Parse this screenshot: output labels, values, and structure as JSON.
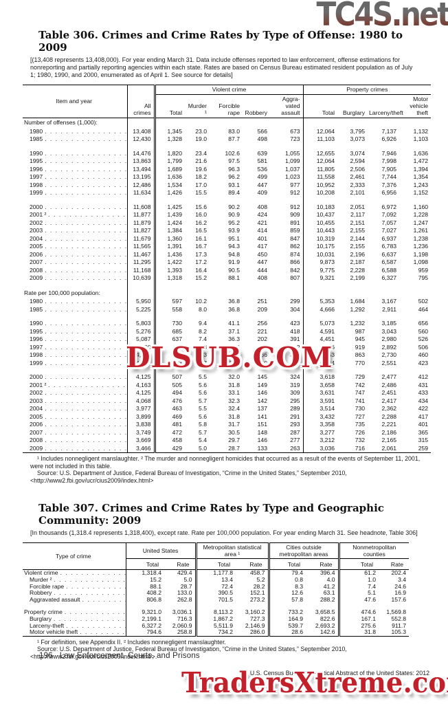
{
  "watermarks": {
    "top": "TC4S.net",
    "middle": "DLSUB.COM",
    "bottom": "TradersXtreme.com",
    "red_color": "#c2202a",
    "gray_color": "#5c5c5c"
  },
  "table306": {
    "title": "Table 306. Crimes and Crime Rates by Type of Offense: 1980 to 2009",
    "headnote": "[(13,408 represents 13,408,000). For year ending March 31. Data include offenses reported to law enforcement, offense estimations for nonreporting and partially reporting agencies within each state. Rates are based on Census Bureau estimated resident population as of July 1; 1980, 1990, and 2000, enumerated as of April 1. See source for details]",
    "groups": {
      "violent": "Violent crime",
      "property": "Property crimes"
    },
    "headers": {
      "item": "Item and year",
      "all": "All crimes",
      "v_total": "Total",
      "murder": "Murder ¹",
      "rape": "Forcible rape",
      "robbery": "Robbery",
      "assault": "Aggra-vated assault",
      "p_total": "Total",
      "burglary": "Burglary",
      "larceny": "Larceny/theft",
      "mvt": "Motor vehicle theft"
    },
    "rows": [
      {
        "section": "Number of offenses (1,000):"
      },
      {
        "label": "1980",
        "indent": true,
        "cells": [
          "13,408",
          "1,345",
          "23.0",
          "83.0",
          "566",
          "673",
          "12,064",
          "3,795",
          "7,137",
          "1,132"
        ]
      },
      {
        "label": "1985",
        "indent": true,
        "cells": [
          "12,430",
          "1,328",
          "19.0",
          "87.7",
          "498",
          "723",
          "11,103",
          "3,073",
          "6,926",
          "1,103"
        ]
      },
      null,
      {
        "label": "1990",
        "indent": true,
        "cells": [
          "14,476",
          "1,820",
          "23.4",
          "102.6",
          "639",
          "1,055",
          "12,655",
          "3,074",
          "7,946",
          "1,636"
        ]
      },
      {
        "label": "1995",
        "indent": true,
        "cells": [
          "13,863",
          "1,799",
          "21.6",
          "97.5",
          "581",
          "1,099",
          "12,064",
          "2,594",
          "7,998",
          "1,472"
        ]
      },
      {
        "label": "1996",
        "indent": true,
        "cells": [
          "13,494",
          "1,689",
          "19.6",
          "96.3",
          "536",
          "1,037",
          "11,805",
          "2,506",
          "7,905",
          "1,394"
        ]
      },
      {
        "label": "1997",
        "indent": true,
        "cells": [
          "13,195",
          "1,636",
          "18.2",
          "96.2",
          "499",
          "1,023",
          "11,558",
          "2,461",
          "7,744",
          "1,354"
        ]
      },
      {
        "label": "1998",
        "indent": true,
        "cells": [
          "12,486",
          "1,534",
          "17.0",
          "93.1",
          "447",
          "977",
          "10,952",
          "2,333",
          "7,376",
          "1,243"
        ]
      },
      {
        "label": "1999",
        "indent": true,
        "cells": [
          "11,634",
          "1,426",
          "15.5",
          "89.4",
          "409",
          "912",
          "10,208",
          "2,101",
          "6,956",
          "1,152"
        ]
      },
      null,
      {
        "label": "2000",
        "indent": true,
        "cells": [
          "11,608",
          "1,425",
          "15.6",
          "90.2",
          "408",
          "912",
          "10,183",
          "2,051",
          "6,972",
          "1,160"
        ]
      },
      {
        "label": "2001 ²",
        "indent": true,
        "cells": [
          "11,877",
          "1,439",
          "16.0",
          "90.9",
          "424",
          "909",
          "10,437",
          "2,117",
          "7,092",
          "1,228"
        ]
      },
      {
        "label": "2002",
        "indent": true,
        "cells": [
          "11,879",
          "1,424",
          "16.2",
          "95.2",
          "421",
          "891",
          "10,455",
          "2,151",
          "7,057",
          "1,247"
        ]
      },
      {
        "label": "2003",
        "indent": true,
        "cells": [
          "11,827",
          "1,384",
          "16.5",
          "93.9",
          "414",
          "859",
          "10,443",
          "2,155",
          "7,027",
          "1,261"
        ]
      },
      {
        "label": "2004",
        "indent": true,
        "cells": [
          "11,679",
          "1,360",
          "16.1",
          "95.1",
          "401",
          "847",
          "10,319",
          "2,144",
          "6,937",
          "1,238"
        ]
      },
      {
        "label": "2005",
        "indent": true,
        "cells": [
          "11,565",
          "1,391",
          "16.7",
          "94.3",
          "417",
          "862",
          "10,175",
          "2,155",
          "6,783",
          "1,236"
        ]
      },
      {
        "label": "2006",
        "indent": true,
        "cells": [
          "11,467",
          "1,436",
          "17.3",
          "94.8",
          "450",
          "874",
          "10,031",
          "2,196",
          "6,637",
          "1,198"
        ]
      },
      {
        "label": "2007",
        "indent": true,
        "cells": [
          "11,295",
          "1,422",
          "17.2",
          "91.9",
          "447",
          "866",
          "9,873",
          "2,187",
          "6,587",
          "1,098"
        ]
      },
      {
        "label": "2008",
        "indent": true,
        "cells": [
          "11,168",
          "1,393",
          "16.4",
          "90.5",
          "444",
          "842",
          "9,775",
          "2,228",
          "6,588",
          "959"
        ]
      },
      {
        "label": "2009",
        "indent": true,
        "cells": [
          "10,639",
          "1,318",
          "15.2",
          "88.1",
          "408",
          "807",
          "9,321",
          "2,199",
          "6,327",
          "795"
        ]
      },
      null,
      {
        "section": "Rate per 100,000 population:"
      },
      {
        "label": "1980",
        "indent": true,
        "cells": [
          "5,950",
          "597",
          "10.2",
          "36.8",
          "251",
          "299",
          "5,353",
          "1,684",
          "3,167",
          "502"
        ]
      },
      {
        "label": "1985",
        "indent": true,
        "cells": [
          "5,225",
          "558",
          "8.0",
          "36.8",
          "209",
          "304",
          "4,666",
          "1,292",
          "2,911",
          "464"
        ]
      },
      null,
      {
        "label": "1990",
        "indent": true,
        "cells": [
          "5,803",
          "730",
          "9.4",
          "41.1",
          "256",
          "423",
          "5,073",
          "1,232",
          "3,185",
          "656"
        ]
      },
      {
        "label": "1995",
        "indent": true,
        "cells": [
          "5,276",
          "685",
          "8.2",
          "37.1",
          "221",
          "418",
          "4,591",
          "987",
          "3,043",
          "560"
        ]
      },
      {
        "label": "1996",
        "indent": true,
        "cells": [
          "5,087",
          "637",
          "7.4",
          "36.3",
          "202",
          "391",
          "4,451",
          "945",
          "2,980",
          "526"
        ]
      },
      {
        "label": "1997",
        "indent": true,
        "cells": [
          "4,930",
          "611",
          "6.8",
          "35.9",
          "186",
          "382",
          "4,316",
          "919",
          "2,892",
          "506"
        ]
      },
      {
        "label": "1998",
        "indent": true,
        "cells": [
          "4,619",
          "568",
          "6.3",
          "34.5",
          "166",
          "361",
          "4,053",
          "863",
          "2,730",
          "460"
        ]
      },
      {
        "label": "1999",
        "indent": true,
        "cells": [
          "4,267",
          "523",
          "5.7",
          "32.8",
          "150",
          "334",
          "3,744",
          "770",
          "2,551",
          "423"
        ]
      },
      null,
      {
        "label": "2000",
        "indent": true,
        "cells": [
          "4,125",
          "507",
          "5.5",
          "32.0",
          "145",
          "324",
          "3,618",
          "729",
          "2,477",
          "412"
        ]
      },
      {
        "label": "2001 ²",
        "indent": true,
        "cells": [
          "4,163",
          "505",
          "5.6",
          "31.8",
          "149",
          "319",
          "3,658",
          "742",
          "2,486",
          "431"
        ]
      },
      {
        "label": "2002",
        "indent": true,
        "cells": [
          "4,125",
          "494",
          "5.6",
          "33.1",
          "146",
          "309",
          "3,631",
          "747",
          "2,451",
          "433"
        ]
      },
      {
        "label": "2003",
        "indent": true,
        "cells": [
          "4,068",
          "476",
          "5.7",
          "32.3",
          "142",
          "295",
          "3,591",
          "741",
          "2,417",
          "434"
        ]
      },
      {
        "label": "2004",
        "indent": true,
        "cells": [
          "3,977",
          "463",
          "5.5",
          "32.4",
          "137",
          "289",
          "3,514",
          "730",
          "2,362",
          "422"
        ]
      },
      {
        "label": "2005",
        "indent": true,
        "cells": [
          "3,899",
          "469",
          "5.6",
          "31.8",
          "141",
          "291",
          "3,432",
          "727",
          "2,288",
          "417"
        ]
      },
      {
        "label": "2006",
        "indent": true,
        "cells": [
          "3,838",
          "481",
          "5.8",
          "31.7",
          "151",
          "293",
          "3,358",
          "735",
          "2,221",
          "401"
        ]
      },
      {
        "label": "2007",
        "indent": true,
        "cells": [
          "3,749",
          "472",
          "5.7",
          "30.5",
          "148",
          "287",
          "3,277",
          "726",
          "2,186",
          "365"
        ]
      },
      {
        "label": "2008",
        "indent": true,
        "cells": [
          "3,669",
          "458",
          "5.4",
          "29.7",
          "146",
          "277",
          "3,212",
          "732",
          "2,165",
          "315"
        ]
      },
      {
        "label": "2009",
        "indent": true,
        "cells": [
          "3,466",
          "429",
          "5.0",
          "28.7",
          "133",
          "263",
          "3,036",
          "716",
          "2,061",
          "259"
        ]
      }
    ],
    "footnote": "¹ Includes nonnegligent manslaughter. ² The murder and nonnegligent homicides that occurred as a result of the events of September 11, 2001, were not included in this table.",
    "source": "Source: U.S. Department of Justice, Federal Bureau of Investigation, “Crime in the United States,” September 2010, <http://www2.fbi.gov/ucr/cius2009/index.html>"
  },
  "table307": {
    "title": "Table 307. Crimes and Crime Rates by Type and Geographic Community: 2009",
    "headnote": "[In thousands (1,318.4 represents 1,318,400), except rate. Rate per 100,000 population. For year ending March 31. See headnote, Table 306]",
    "type_header": "Type of crime",
    "groups": [
      "United States",
      "Metropolitan statistical area ¹",
      "Cities outside metropolitan areas",
      "Nonmetropolitan counties"
    ],
    "sub": [
      "Total",
      "Rate"
    ],
    "rows": [
      {
        "label": "Violent crime",
        "indent": false,
        "cells": [
          "1,318.4",
          "429.4",
          "1,177.8",
          "458.7",
          "79.4",
          "396.4",
          "61.2",
          "202.4"
        ]
      },
      {
        "label": "Murder ²",
        "indent": true,
        "cells": [
          "15.2",
          "5.0",
          "13.4",
          "5.2",
          "0.8",
          "4.0",
          "1.0",
          "3.4"
        ]
      },
      {
        "label": "Forcible rape",
        "indent": true,
        "cells": [
          "88.1",
          "28.7",
          "72.4",
          "28.2",
          "8.3",
          "41.2",
          "7.4",
          "24.6"
        ]
      },
      {
        "label": "Robbery",
        "indent": true,
        "cells": [
          "408.2",
          "133.0",
          "390.5",
          "152.1",
          "12.6",
          "63.1",
          "5.1",
          "16.9"
        ]
      },
      {
        "label": "Aggravated assault",
        "indent": true,
        "cells": [
          "806.8",
          "262.8",
          "701.5",
          "273.2",
          "57.8",
          "288.2",
          "47.6",
          "157.6"
        ]
      },
      null,
      {
        "label": "Property crime",
        "indent": false,
        "cells": [
          "9,321.0",
          "3,036.1",
          "8,113.2",
          "3,160.2",
          "733.2",
          "3,658.5",
          "474.6",
          "1,569.8"
        ]
      },
      {
        "label": "Burglary",
        "indent": true,
        "cells": [
          "2,199.1",
          "716.3",
          "1,867.2",
          "727.3",
          "164.9",
          "822.6",
          "167.1",
          "552.8"
        ]
      },
      {
        "label": "Larceny-theft",
        "indent": true,
        "cells": [
          "6,327.2",
          "2,060.9",
          "5,511.9",
          "2,146.9",
          "539.7",
          "2,693.2",
          "275.6",
          "911.7"
        ]
      },
      {
        "label": "Motor vehicle theft",
        "indent": true,
        "cells": [
          "794.6",
          "258.8",
          "734.2",
          "286.0",
          "28.6",
          "142.6",
          "31.8",
          "105.3"
        ]
      }
    ],
    "footnote": "¹ For definition, see Appendix II. ² Includes nonnegligent manslaughter.",
    "source": "Source: U.S. Department of Justice, Federal Bureau of Investigation, “Crime in the United States,” September 2010, <http://www2.fbi.gov/ucr/cius2009/index.html/>."
  },
  "page_footer": {
    "page_number": "196",
    "section": "Law Enforcement, Courts, and Prisons",
    "imprint": "U.S. Census Bureau, Statistical Abstract of the United States: 2012"
  }
}
